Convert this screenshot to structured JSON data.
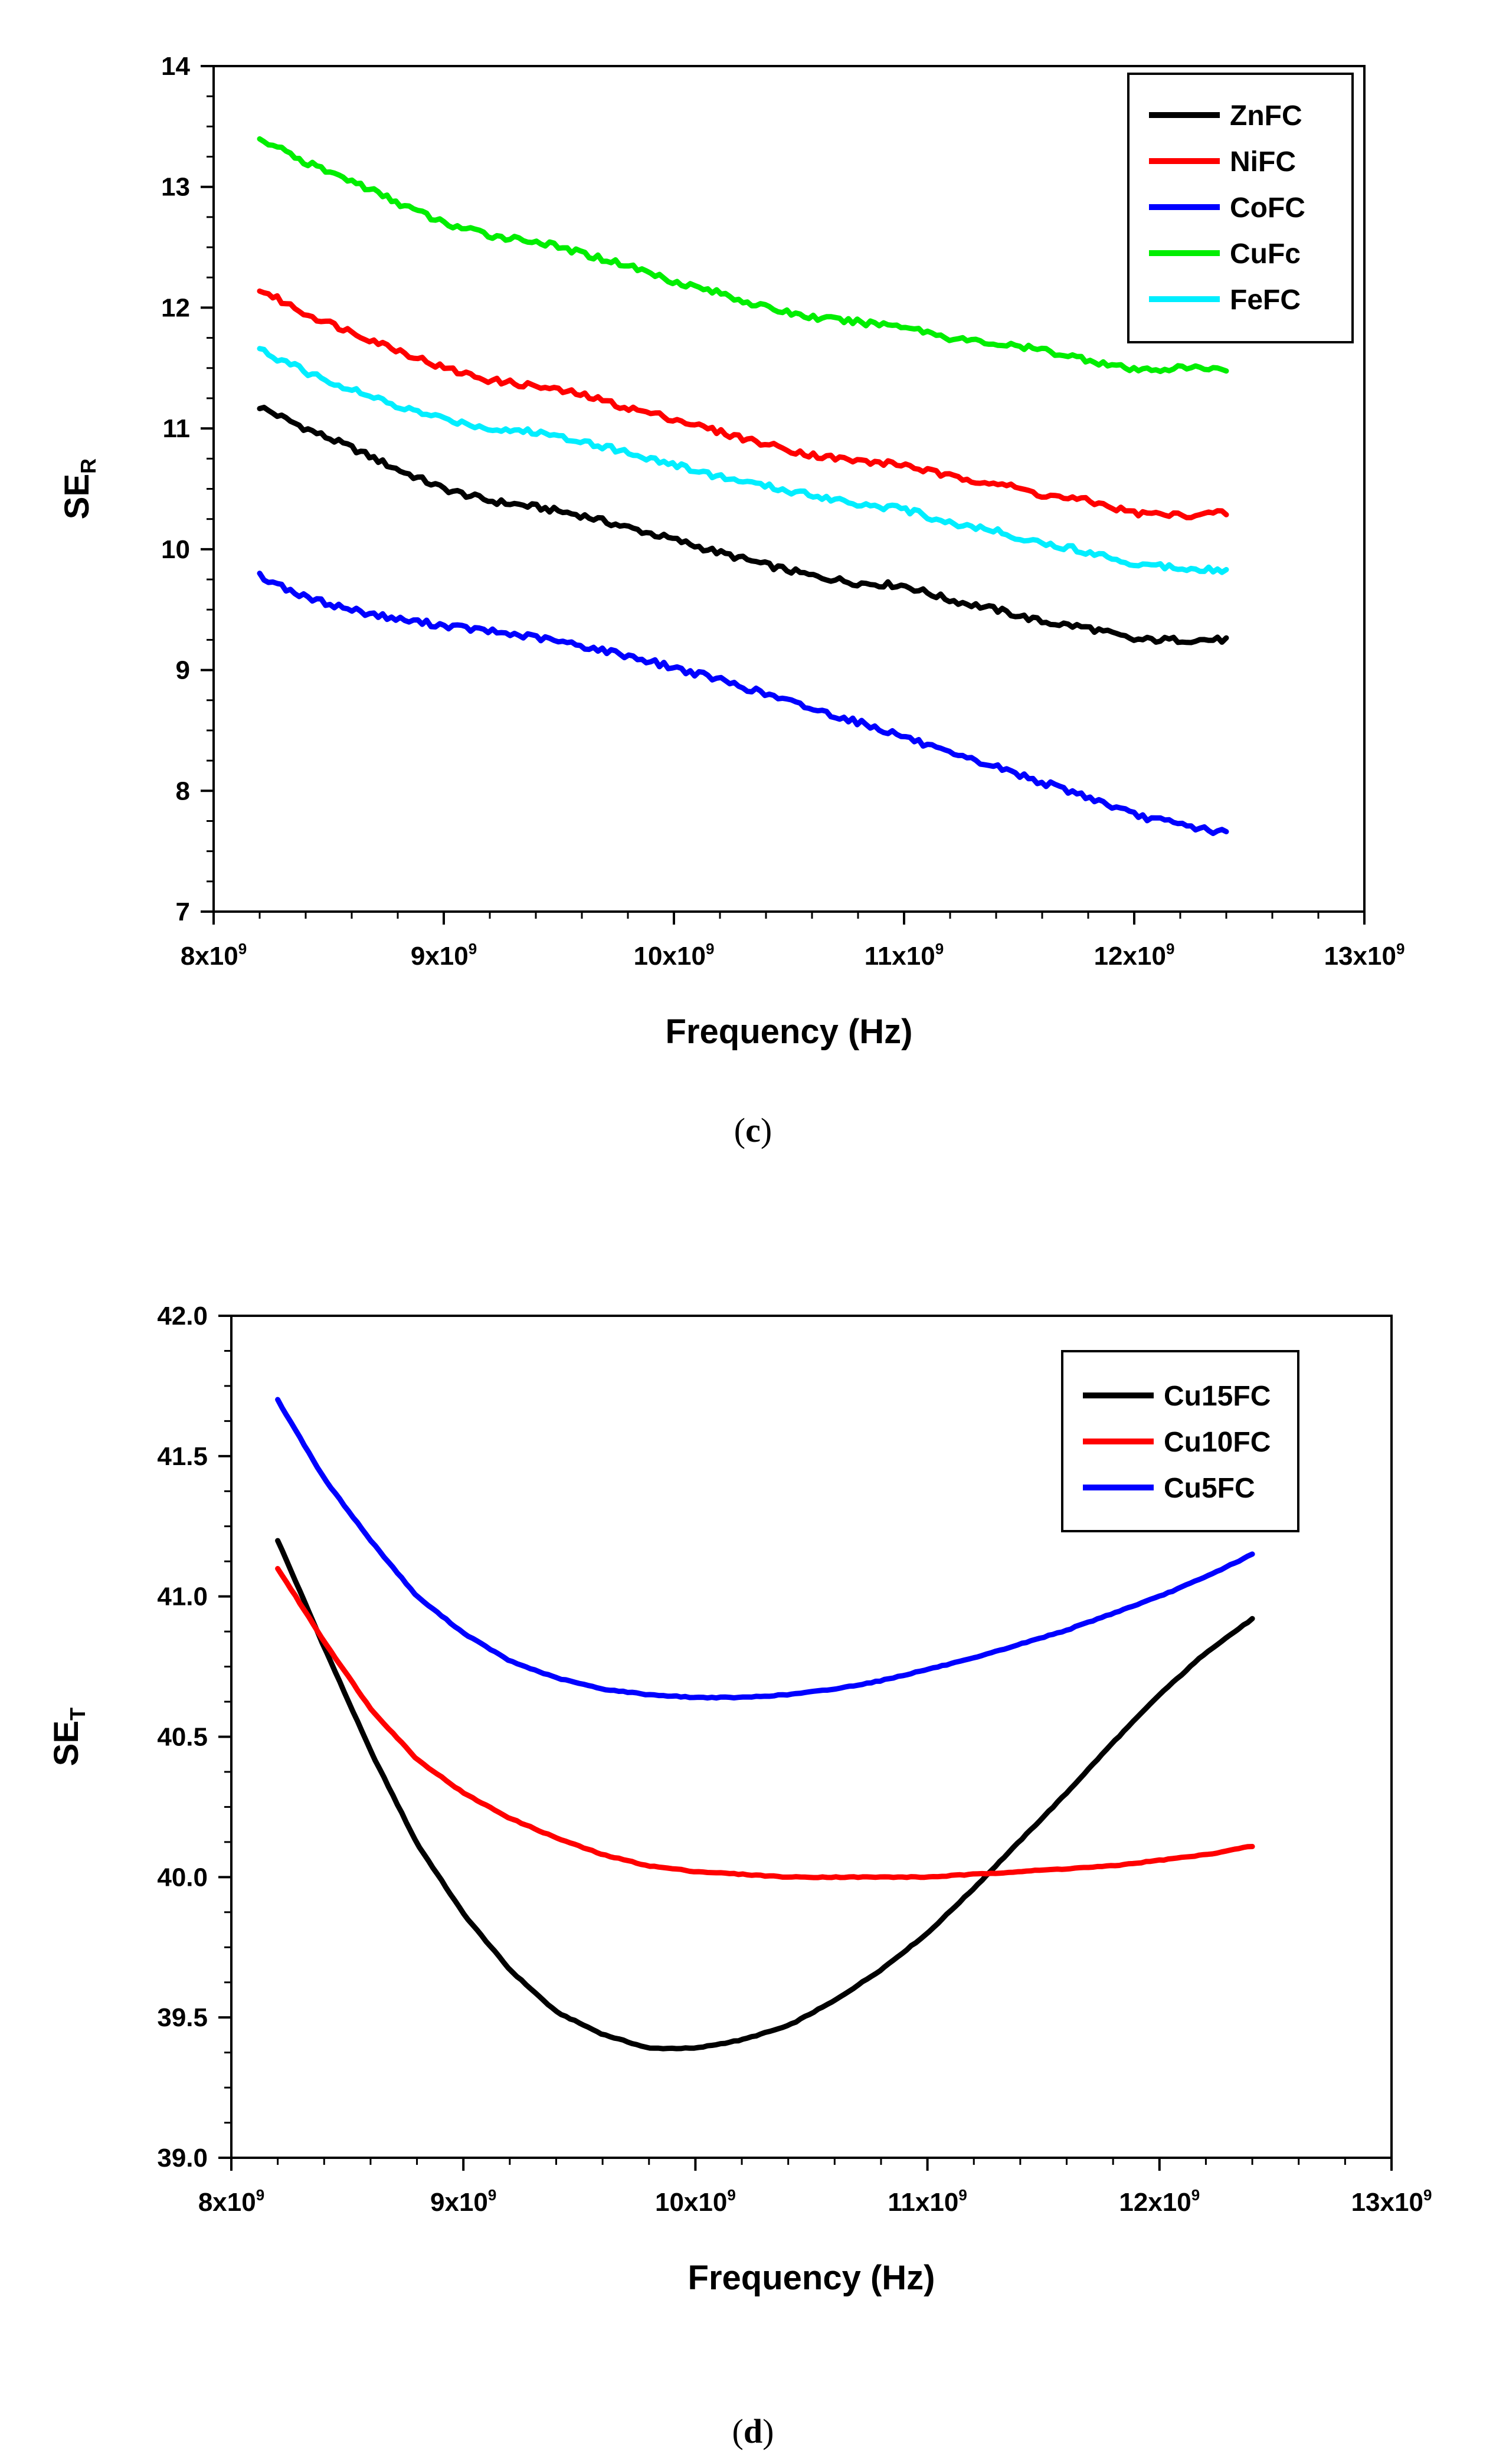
{
  "chart_data": [
    {
      "type": "line",
      "panel_label": "c",
      "xlabel": "Frequency (Hz)",
      "ylabel": {
        "main": "SE",
        "sub": "R"
      },
      "xlim": [
        8000000000.0,
        13000000000.0
      ],
      "ylim": [
        7,
        14
      ],
      "xticks": [
        8000000000.0,
        9000000000.0,
        10000000000.0,
        11000000000.0,
        12000000000.0,
        13000000000.0
      ],
      "xtick_labels": [
        {
          "base": "8x10",
          "exp": "9"
        },
        {
          "base": "9x10",
          "exp": "9"
        },
        {
          "base": "10x10",
          "exp": "9"
        },
        {
          "base": "11x10",
          "exp": "9"
        },
        {
          "base": "12x10",
          "exp": "9"
        },
        {
          "base": "13x10",
          "exp": "9"
        }
      ],
      "yticks": [
        7,
        8,
        9,
        10,
        11,
        12,
        13,
        14
      ],
      "ytick_labels": [
        "7",
        "8",
        "9",
        "10",
        "11",
        "12",
        "13",
        "14"
      ],
      "legend_position": "top-right",
      "x": [
        8200000000.0,
        8400000000.0,
        8600000000.0,
        8800000000.0,
        9000000000.0,
        9200000000.0,
        9400000000.0,
        9600000000.0,
        9800000000.0,
        10000000000.0,
        10200000000.0,
        10400000000.0,
        10600000000.0,
        10800000000.0,
        11000000000.0,
        11200000000.0,
        11400000000.0,
        11600000000.0,
        11800000000.0,
        12000000000.0,
        12200000000.0,
        12400000000.0
      ],
      "series": [
        {
          "name": "ZnFC",
          "color": "#000000",
          "values": [
            11.18,
            11.0,
            10.84,
            10.66,
            10.5,
            10.4,
            10.35,
            10.28,
            10.18,
            10.08,
            9.97,
            9.87,
            9.78,
            9.72,
            9.7,
            9.58,
            9.5,
            9.4,
            9.35,
            9.25,
            9.25,
            9.25
          ]
        },
        {
          "name": "NiFC",
          "color": "#ff0000",
          "values": [
            12.15,
            11.95,
            11.8,
            11.65,
            11.5,
            11.4,
            11.35,
            11.28,
            11.17,
            11.08,
            10.97,
            10.87,
            10.78,
            10.73,
            10.7,
            10.6,
            10.55,
            10.45,
            10.4,
            10.3,
            10.28,
            10.3
          ]
        },
        {
          "name": "CoFC",
          "color": "#0000ff",
          "values": [
            9.78,
            9.6,
            9.5,
            9.42,
            9.37,
            9.32,
            9.27,
            9.2,
            9.12,
            9.02,
            8.92,
            8.8,
            8.68,
            8.57,
            8.45,
            8.3,
            8.2,
            8.07,
            7.95,
            7.8,
            7.72,
            7.65
          ]
        },
        {
          "name": "CuFc",
          "color": "#00ee00",
          "values": [
            13.4,
            13.2,
            13.05,
            12.87,
            12.7,
            12.6,
            12.55,
            12.45,
            12.35,
            12.22,
            12.12,
            12.0,
            11.92,
            11.88,
            11.85,
            11.75,
            11.7,
            11.65,
            11.57,
            11.48,
            11.5,
            11.5
          ]
        },
        {
          "name": "FeFC",
          "color": "#00eeff",
          "values": [
            11.65,
            11.47,
            11.32,
            11.18,
            11.08,
            11.0,
            10.97,
            10.9,
            10.8,
            10.7,
            10.6,
            10.52,
            10.45,
            10.38,
            10.33,
            10.22,
            10.15,
            10.05,
            9.98,
            9.88,
            9.85,
            9.83
          ]
        }
      ]
    },
    {
      "type": "line",
      "panel_label": "d",
      "xlabel": "Frequency (Hz)",
      "ylabel": {
        "main": "SE",
        "sub": "T"
      },
      "xlim": [
        8000000000.0,
        13000000000.0
      ],
      "ylim": [
        39.0,
        42.0
      ],
      "xticks": [
        8000000000.0,
        9000000000.0,
        10000000000.0,
        11000000000.0,
        12000000000.0,
        13000000000.0
      ],
      "xtick_labels": [
        {
          "base": "8x10",
          "exp": "9"
        },
        {
          "base": "9x10",
          "exp": "9"
        },
        {
          "base": "10x10",
          "exp": "9"
        },
        {
          "base": "11x10",
          "exp": "9"
        },
        {
          "base": "12x10",
          "exp": "9"
        },
        {
          "base": "13x10",
          "exp": "9"
        }
      ],
      "yticks": [
        39.0,
        39.5,
        40.0,
        40.5,
        41.0,
        41.5,
        42.0
      ],
      "ytick_labels": [
        "39.0",
        "39.5",
        "40.0",
        "40.5",
        "41.0",
        "41.5",
        "42.0"
      ],
      "legend_position": "top-right",
      "x": [
        8200000000.0,
        8400000000.0,
        8600000000.0,
        8800000000.0,
        9000000000.0,
        9200000000.0,
        9400000000.0,
        9600000000.0,
        9800000000.0,
        10000000000.0,
        10200000000.0,
        10400000000.0,
        10600000000.0,
        10800000000.0,
        11000000000.0,
        11200000000.0,
        11400000000.0,
        11600000000.0,
        11800000000.0,
        12000000000.0,
        12200000000.0,
        12400000000.0
      ],
      "series": [
        {
          "name": "Cu15FC",
          "color": "#000000",
          "values": [
            41.2,
            40.82,
            40.45,
            40.12,
            39.87,
            39.67,
            39.52,
            39.44,
            39.39,
            39.39,
            39.42,
            39.47,
            39.56,
            39.67,
            39.8,
            39.96,
            40.13,
            40.3,
            40.48,
            40.65,
            40.8,
            40.92
          ]
        },
        {
          "name": "Cu10FC",
          "color": "#ff0000",
          "values": [
            41.1,
            40.84,
            40.6,
            40.42,
            40.3,
            40.21,
            40.14,
            40.08,
            40.04,
            40.02,
            40.01,
            40.0,
            40.0,
            40.0,
            40.0,
            40.01,
            40.02,
            40.03,
            40.04,
            40.06,
            40.08,
            40.11
          ]
        },
        {
          "name": "Cu5FC",
          "color": "#0000ff",
          "values": [
            41.7,
            41.42,
            41.2,
            41.0,
            40.87,
            40.77,
            40.71,
            40.67,
            40.65,
            40.64,
            40.64,
            40.65,
            40.67,
            40.7,
            40.74,
            40.78,
            40.83,
            40.88,
            40.94,
            41.0,
            41.07,
            41.15
          ]
        }
      ]
    }
  ]
}
